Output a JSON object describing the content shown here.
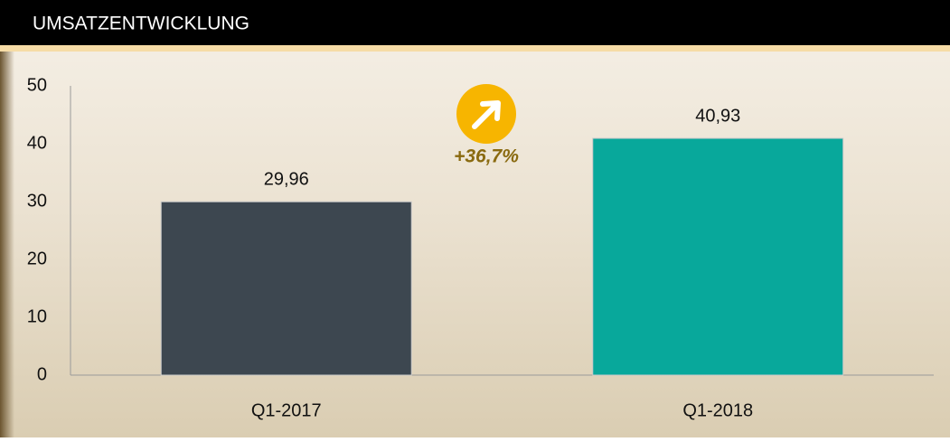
{
  "chart_data": {
    "type": "bar",
    "title": "UMSATZENTWICKLUNG",
    "categories": [
      "Q1-2017",
      "Q1-2018"
    ],
    "values": [
      29.96,
      40.93
    ],
    "value_labels": [
      "29,96",
      "40,93"
    ],
    "colors": [
      "#3d4750",
      "#08a89b"
    ],
    "annotation": "+36,7%",
    "ylim": [
      0,
      50
    ],
    "yticks": [
      0,
      10,
      20,
      30,
      40,
      50
    ],
    "grid": false
  }
}
